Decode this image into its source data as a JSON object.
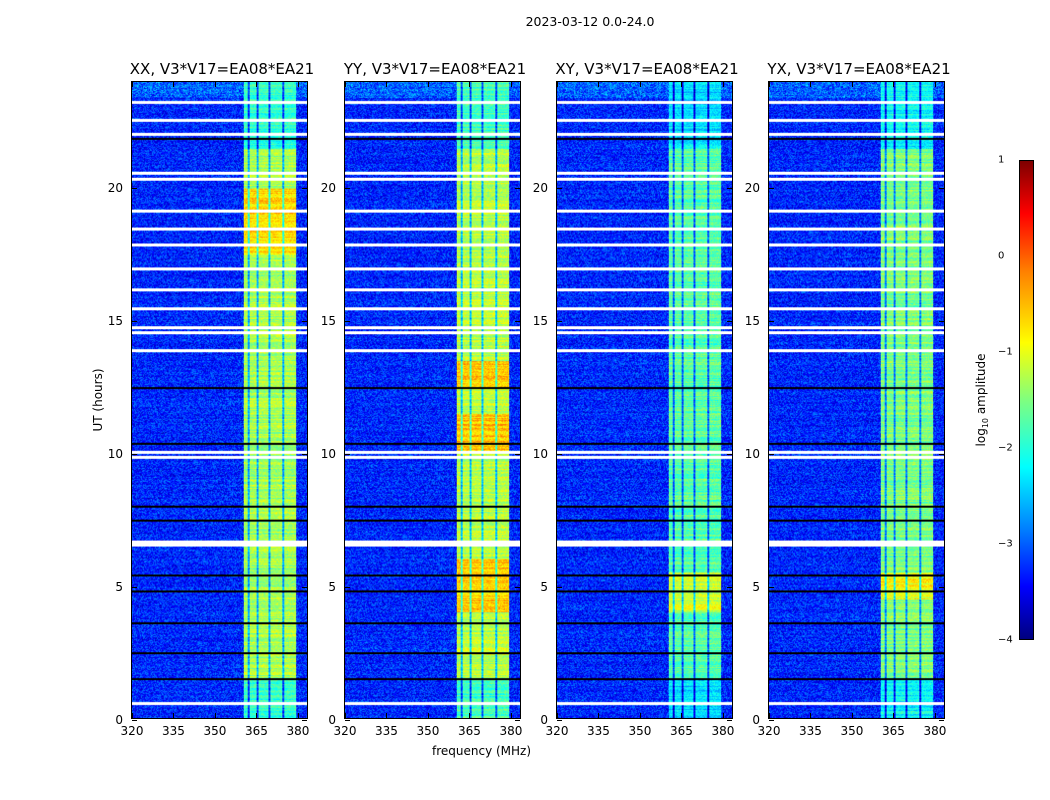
{
  "chart_data": {
    "type": "heatmap",
    "title": "2023-03-12 0.0-24.0",
    "xlabel": "frequency (MHz)",
    "ylabel": "UT (hours)",
    "xlim": [
      320,
      384
    ],
    "ylim": [
      0,
      24
    ],
    "xticks": [
      "320",
      "335",
      "350",
      "365",
      "380"
    ],
    "xtick_values": [
      320,
      335,
      350,
      365,
      380
    ],
    "yticks": [
      "0",
      "5",
      "10",
      "15",
      "20"
    ],
    "ytick_values": [
      0,
      5,
      10,
      15,
      20
    ],
    "panels": [
      {
        "title": "XX, V3*V17=EA08*EA21",
        "band_level": -1.3,
        "strong_times": [
          [
            17.5,
            20
          ]
        ]
      },
      {
        "title": "YY, V3*V17=EA08*EA21",
        "band_level": -1.2,
        "strong_times": [
          [
            4,
            6
          ],
          [
            10,
            11.5
          ],
          [
            12.5,
            13.5
          ]
        ]
      },
      {
        "title": "XY, V3*V17=EA08*EA21",
        "band_level": -1.7,
        "strong_times": [
          [
            4,
            5.5
          ]
        ]
      },
      {
        "title": "YX, V3*V17=EA08*EA21",
        "band_level": -1.5,
        "strong_times": [
          [
            4.5,
            5.5
          ]
        ]
      }
    ],
    "background_level": -3.2,
    "rfi_band_mhz": [
      360.5,
      380
    ],
    "flagged_white_ut": [
      0.6,
      6.6,
      6.7,
      9.9,
      10.1,
      13.9,
      14.6,
      14.8,
      15.5,
      16.2,
      17.0,
      17.9,
      18.5,
      19.2,
      20.4,
      20.6,
      22.1,
      22.6,
      23.3
    ],
    "flagged_black_ut": [
      1.5,
      2.5,
      3.6,
      4.8,
      5.4,
      7.5,
      8.0,
      10.4,
      12.5,
      21.9
    ],
    "colorbar": {
      "label": "log10 amplitude",
      "range": [
        -4,
        1
      ],
      "ticks": [
        "1",
        "0",
        "−1",
        "−2",
        "−3",
        "−4"
      ],
      "tick_values": [
        1,
        0,
        -1,
        -2,
        -3,
        -4
      ],
      "colormap": "jet"
    }
  }
}
